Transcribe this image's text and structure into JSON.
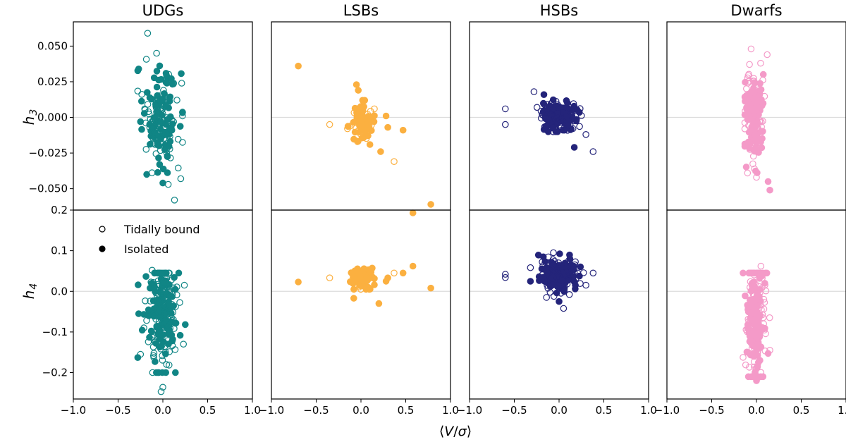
{
  "chart_data": {
    "type": "scatter",
    "xlabel_parts": [
      "⟨",
      "V",
      "/",
      "σ",
      "⟩"
    ],
    "xlim": [
      -1.0,
      1.0
    ],
    "xticks": [
      "−1.0",
      "−0.5",
      "0.0",
      "0.5",
      "1.0"
    ],
    "xtick_values": [
      -1.0,
      -0.5,
      0.0,
      0.5,
      1.0
    ],
    "rows": [
      {
        "label_main": "h",
        "label_sub": "3",
        "ylim": [
          -0.065,
          0.067
        ],
        "yticks": [
          "0.050",
          "0.025",
          "0.000",
          "−0.025",
          "−0.050"
        ],
        "ytick_values": [
          0.05,
          0.025,
          0.0,
          -0.025,
          -0.05
        ]
      },
      {
        "label_main": "h",
        "label_sub": "4",
        "ylim": [
          -0.265,
          0.2
        ],
        "yticks": [
          "0.2",
          "0.1",
          "0.0",
          "−0.1",
          "−0.2"
        ],
        "ytick_values": [
          0.2,
          0.1,
          0.0,
          -0.1,
          -0.2
        ]
      }
    ],
    "legend": {
      "placement": "upper-left of UDGs h4 panel",
      "entries": [
        {
          "label": "Tidally bound",
          "marker": "open-circle"
        },
        {
          "label": "Isolated",
          "marker": "filled-circle"
        }
      ]
    },
    "series": [
      {
        "name": "UDGs",
        "color": "#108585",
        "cluster": {
          "h3": {
            "n": 170,
            "xmean": -0.03,
            "xsd": 0.1,
            "ymean": 0.0,
            "ysd": 0.016,
            "xmin": -0.28,
            "xmax": 0.22,
            "ymin": -0.046,
            "ymax": 0.045,
            "filled_frac": 0.45
          },
          "h4": {
            "n": 220,
            "xmean": -0.02,
            "xsd": 0.09,
            "ymean": -0.055,
            "ysd": 0.07,
            "xmin": -0.28,
            "xmax": 0.25,
            "ymin": -0.2,
            "ymax": 0.045,
            "filled_frac": 0.45
          }
        },
        "h3_points": [
          [
            -0.17,
            0.059,
            0
          ],
          [
            -0.07,
            0.045,
            0
          ],
          [
            -0.27,
            0.034,
            1
          ],
          [
            0.21,
            0.024,
            0
          ],
          [
            -0.25,
            -0.003,
            1
          ],
          [
            0.06,
            -0.047,
            0
          ],
          [
            0.13,
            -0.058,
            0
          ],
          [
            0.2,
            -0.043,
            0
          ],
          [
            -0.18,
            -0.04,
            1
          ],
          [
            0.0,
            -0.046,
            1
          ]
        ],
        "h4_points": [
          [
            -0.12,
            0.052,
            0
          ],
          [
            0.0,
            -0.236,
            0
          ],
          [
            -0.02,
            -0.247,
            0
          ],
          [
            -0.27,
            -0.055,
            1
          ],
          [
            -0.25,
            -0.155,
            0
          ],
          [
            0.23,
            -0.13,
            0
          ],
          [
            0.24,
            0.015,
            0
          ]
        ]
      },
      {
        "name": "LSBs",
        "color": "#FBB040",
        "cluster": {
          "h3": {
            "n": 85,
            "xmean": 0.0,
            "xsd": 0.07,
            "ymean": -0.002,
            "ysd": 0.007,
            "xmin": -0.15,
            "xmax": 0.15,
            "ymin": -0.017,
            "ymax": 0.012,
            "filled_frac": 0.75
          },
          "h4": {
            "n": 100,
            "xmean": 0.0,
            "xsd": 0.07,
            "ymean": 0.035,
            "ysd": 0.012,
            "xmin": -0.15,
            "xmax": 0.15,
            "ymin": 0.005,
            "ymax": 0.065,
            "filled_frac": 0.75
          }
        },
        "h3_points": [
          [
            -0.7,
            0.036,
            1
          ],
          [
            -0.05,
            0.023,
            1
          ],
          [
            -0.03,
            0.019,
            1
          ],
          [
            -0.35,
            -0.005,
            0
          ],
          [
            0.08,
            -0.007,
            1
          ],
          [
            0.28,
            0.001,
            1
          ],
          [
            0.3,
            -0.007,
            1
          ],
          [
            0.47,
            -0.009,
            1
          ],
          [
            0.22,
            -0.024,
            1
          ],
          [
            0.1,
            -0.019,
            1
          ],
          [
            0.37,
            -0.031,
            0
          ],
          [
            0.78,
            -0.061,
            1
          ],
          [
            0.58,
            -0.067,
            1
          ]
        ],
        "h4_points": [
          [
            -0.7,
            0.023,
            1
          ],
          [
            -0.35,
            0.033,
            0
          ],
          [
            -0.08,
            -0.017,
            1
          ],
          [
            0.2,
            -0.03,
            1
          ],
          [
            0.28,
            0.025,
            1
          ],
          [
            0.3,
            0.033,
            1
          ],
          [
            0.37,
            0.045,
            0
          ],
          [
            0.47,
            0.045,
            1
          ],
          [
            0.58,
            0.062,
            1
          ],
          [
            0.78,
            0.008,
            1
          ]
        ]
      },
      {
        "name": "HSBs",
        "color": "#24247A",
        "cluster": {
          "h3": {
            "n": 190,
            "xmean": 0.0,
            "xsd": 0.11,
            "ymean": 0.001,
            "ysd": 0.005,
            "xmin": -0.3,
            "xmax": 0.3,
            "ymin": -0.01,
            "ymax": 0.016,
            "filled_frac": 0.5
          },
          "h4": {
            "n": 200,
            "xmean": 0.0,
            "xsd": 0.11,
            "ymean": 0.04,
            "ysd": 0.02,
            "xmin": -0.32,
            "xmax": 0.35,
            "ymin": -0.015,
            "ymax": 0.1,
            "filled_frac": 0.5
          }
        },
        "h3_points": [
          [
            -0.6,
            0.006,
            0
          ],
          [
            -0.6,
            -0.005,
            0
          ],
          [
            0.3,
            -0.012,
            0
          ],
          [
            0.38,
            -0.024,
            0
          ],
          [
            0.17,
            -0.021,
            1
          ],
          [
            -0.28,
            0.018,
            0
          ]
        ],
        "h4_points": [
          [
            -0.6,
            0.042,
            0
          ],
          [
            -0.6,
            0.034,
            0
          ],
          [
            0.38,
            0.045,
            0
          ],
          [
            0.3,
            0.015,
            0
          ],
          [
            0.05,
            -0.042,
            0
          ],
          [
            0.0,
            -0.025,
            1
          ]
        ]
      },
      {
        "name": "Dwarfs",
        "color": "#F49AC8",
        "cluster": {
          "h3": {
            "n": 190,
            "xmean": -0.02,
            "xsd": 0.05,
            "ymean": 0.001,
            "ysd": 0.015,
            "xmin": -0.13,
            "xmax": 0.1,
            "ymin": -0.04,
            "ymax": 0.038,
            "filled_frac": 0.6
          },
          "h4": {
            "n": 240,
            "xmean": -0.01,
            "xsd": 0.05,
            "ymean": -0.07,
            "ysd": 0.08,
            "xmin": -0.15,
            "xmax": 0.15,
            "ymin": -0.21,
            "ymax": 0.045,
            "filled_frac": 0.6
          }
        },
        "h3_points": [
          [
            -0.06,
            0.048,
            0
          ],
          [
            0.12,
            0.044,
            0
          ],
          [
            0.13,
            -0.045,
            1
          ],
          [
            0.15,
            -0.051,
            1
          ],
          [
            -0.1,
            -0.039,
            0
          ],
          [
            0.0,
            -0.042,
            0
          ]
        ],
        "h4_points": [
          [
            0.05,
            0.062,
            0
          ],
          [
            -0.15,
            0.045,
            1
          ],
          [
            0.0,
            -0.22,
            1
          ],
          [
            0.02,
            -0.212,
            0
          ],
          [
            0.15,
            -0.145,
            0
          ]
        ]
      }
    ]
  }
}
